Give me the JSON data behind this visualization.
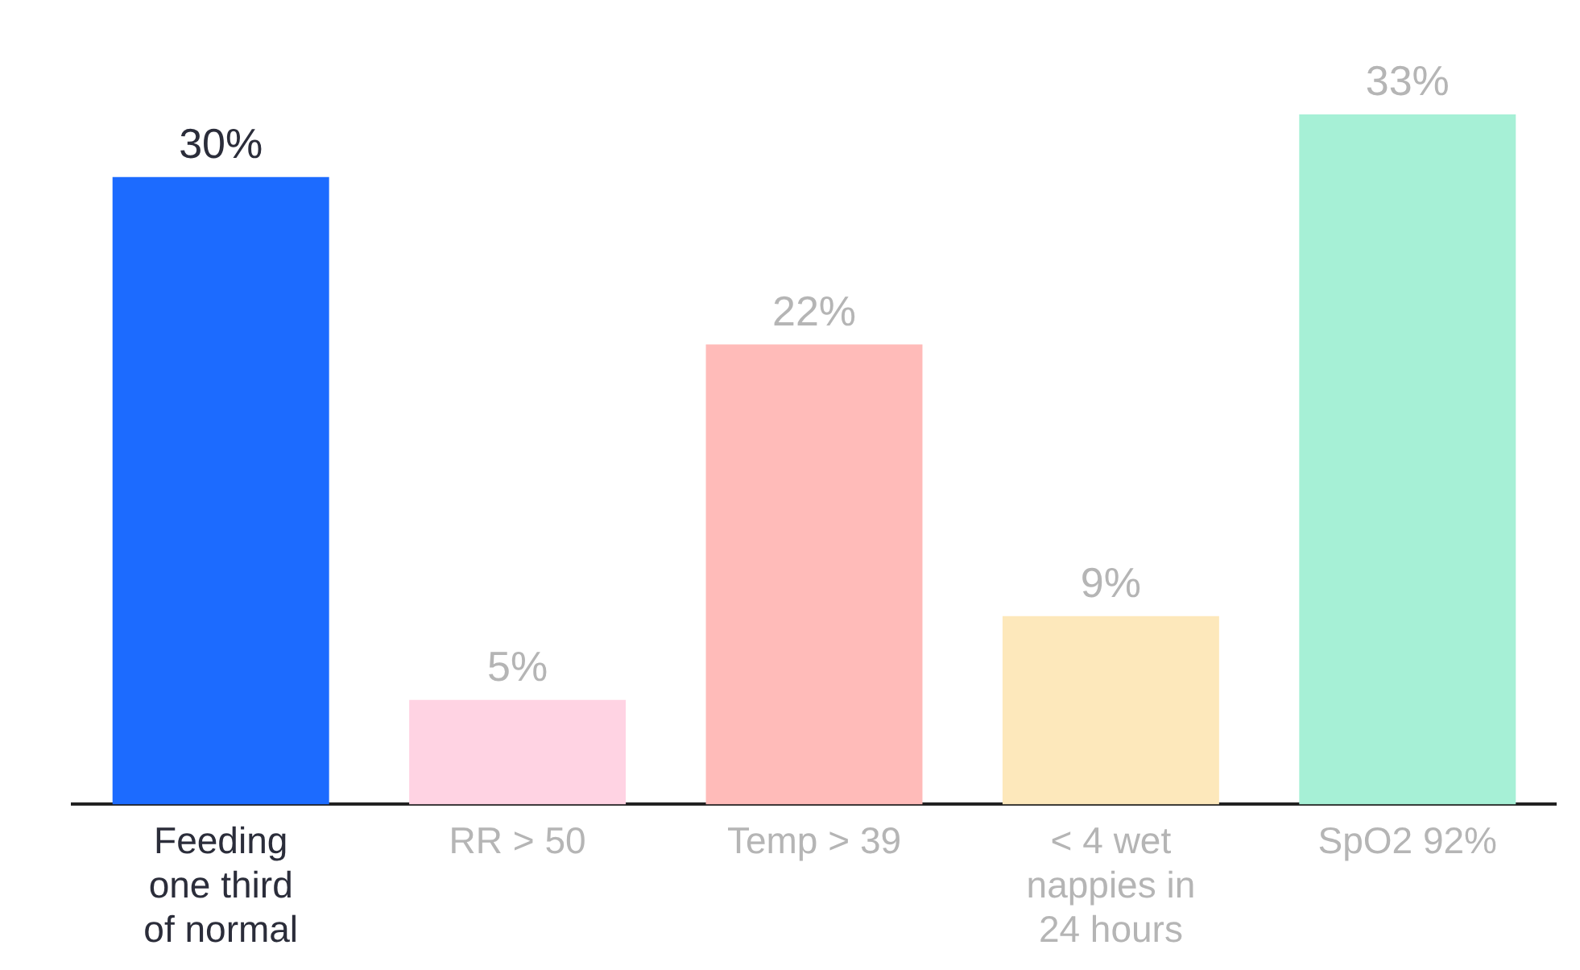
{
  "chart_data": {
    "type": "bar",
    "categories": [
      "Feeding one third of normal",
      "RR > 50",
      "Temp > 39",
      "< 4 wet nappies in 24 hours",
      "SpO2 92%"
    ],
    "values": [
      30,
      5,
      22,
      9,
      33
    ],
    "colors": [
      "#1c6bff",
      "#ffd3e3",
      "#ffbbb9",
      "#fde8bb",
      "#a6f0d6"
    ],
    "value_labels": [
      "30%",
      "5%",
      "22%",
      "9%",
      "33%"
    ],
    "tick_labels": "x",
    "grid": false,
    "legend": false
  }
}
